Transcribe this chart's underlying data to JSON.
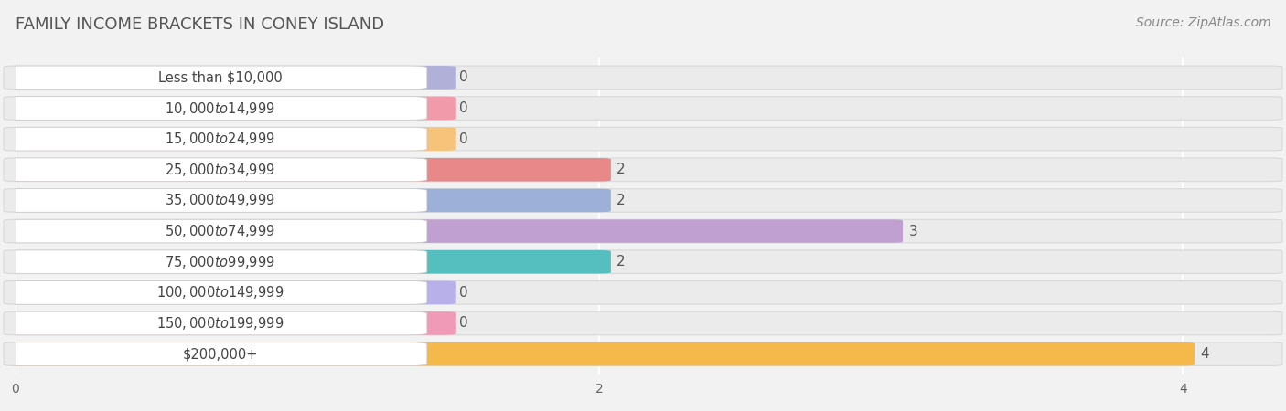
{
  "title": "FAMILY INCOME BRACKETS IN CONEY ISLAND",
  "source": "Source: ZipAtlas.com",
  "categories": [
    "Less than $10,000",
    "$10,000 to $14,999",
    "$15,000 to $24,999",
    "$25,000 to $34,999",
    "$35,000 to $49,999",
    "$50,000 to $74,999",
    "$75,000 to $99,999",
    "$100,000 to $149,999",
    "$150,000 to $199,999",
    "$200,000+"
  ],
  "values": [
    0,
    0,
    0,
    2,
    2,
    3,
    2,
    0,
    0,
    4
  ],
  "bar_colors": [
    "#b0b0d8",
    "#f09aaa",
    "#f5c47a",
    "#e88888",
    "#9db0d8",
    "#c0a0d0",
    "#55bfbf",
    "#b8b0e8",
    "#f09ab8",
    "#f5b84a"
  ],
  "xlim_max": 4.3,
  "xticks": [
    0,
    2,
    4
  ],
  "background_color": "#f2f2f2",
  "bar_bg_color": "#e0e0e0",
  "row_bg_color": "#ebebeb",
  "title_fontsize": 13,
  "source_fontsize": 10,
  "label_fontsize": 10.5,
  "value_fontsize": 11
}
